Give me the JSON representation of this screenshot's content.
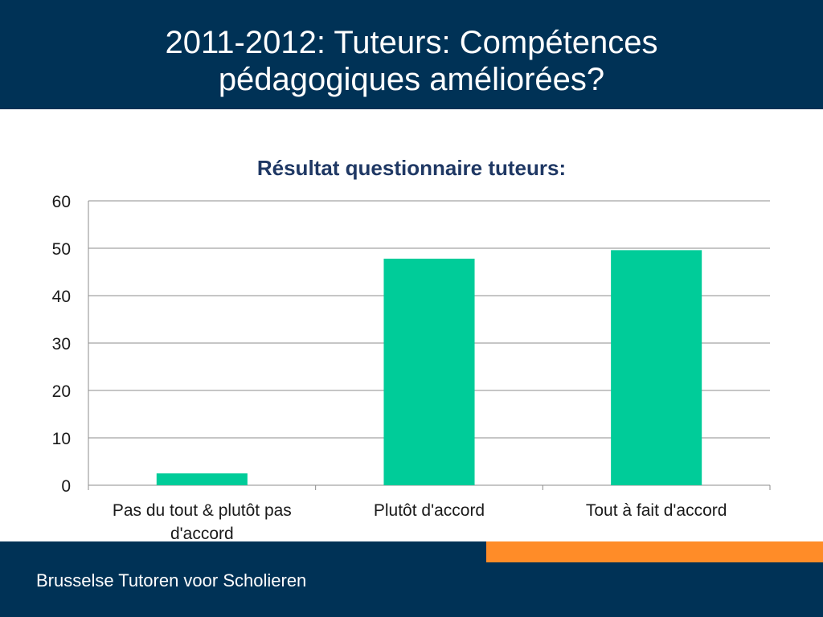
{
  "slide": {
    "title_line1": "2011-2012: Tuteurs: Compétences",
    "title_line2": "pédagogiques améliorées?",
    "footer": "Brusselse Tutoren voor Scholieren"
  },
  "colors": {
    "header_bg": "#003256",
    "accent": "#ff8c28",
    "bar": "#00cc99"
  },
  "chart_data": {
    "type": "bar",
    "title": "Résultat questionnaire tuteurs:",
    "categories": [
      [
        "Pas du tout & plutôt pas",
        "d'accord"
      ],
      [
        "Plutôt d'accord"
      ],
      [
        "Tout à fait d'accord"
      ]
    ],
    "values": [
      2.5,
      47.8,
      49.6
    ],
    "yticks": [
      0,
      10,
      20,
      30,
      40,
      50,
      60
    ],
    "ylim": [
      0,
      60
    ],
    "grid": true,
    "legend": "none"
  }
}
